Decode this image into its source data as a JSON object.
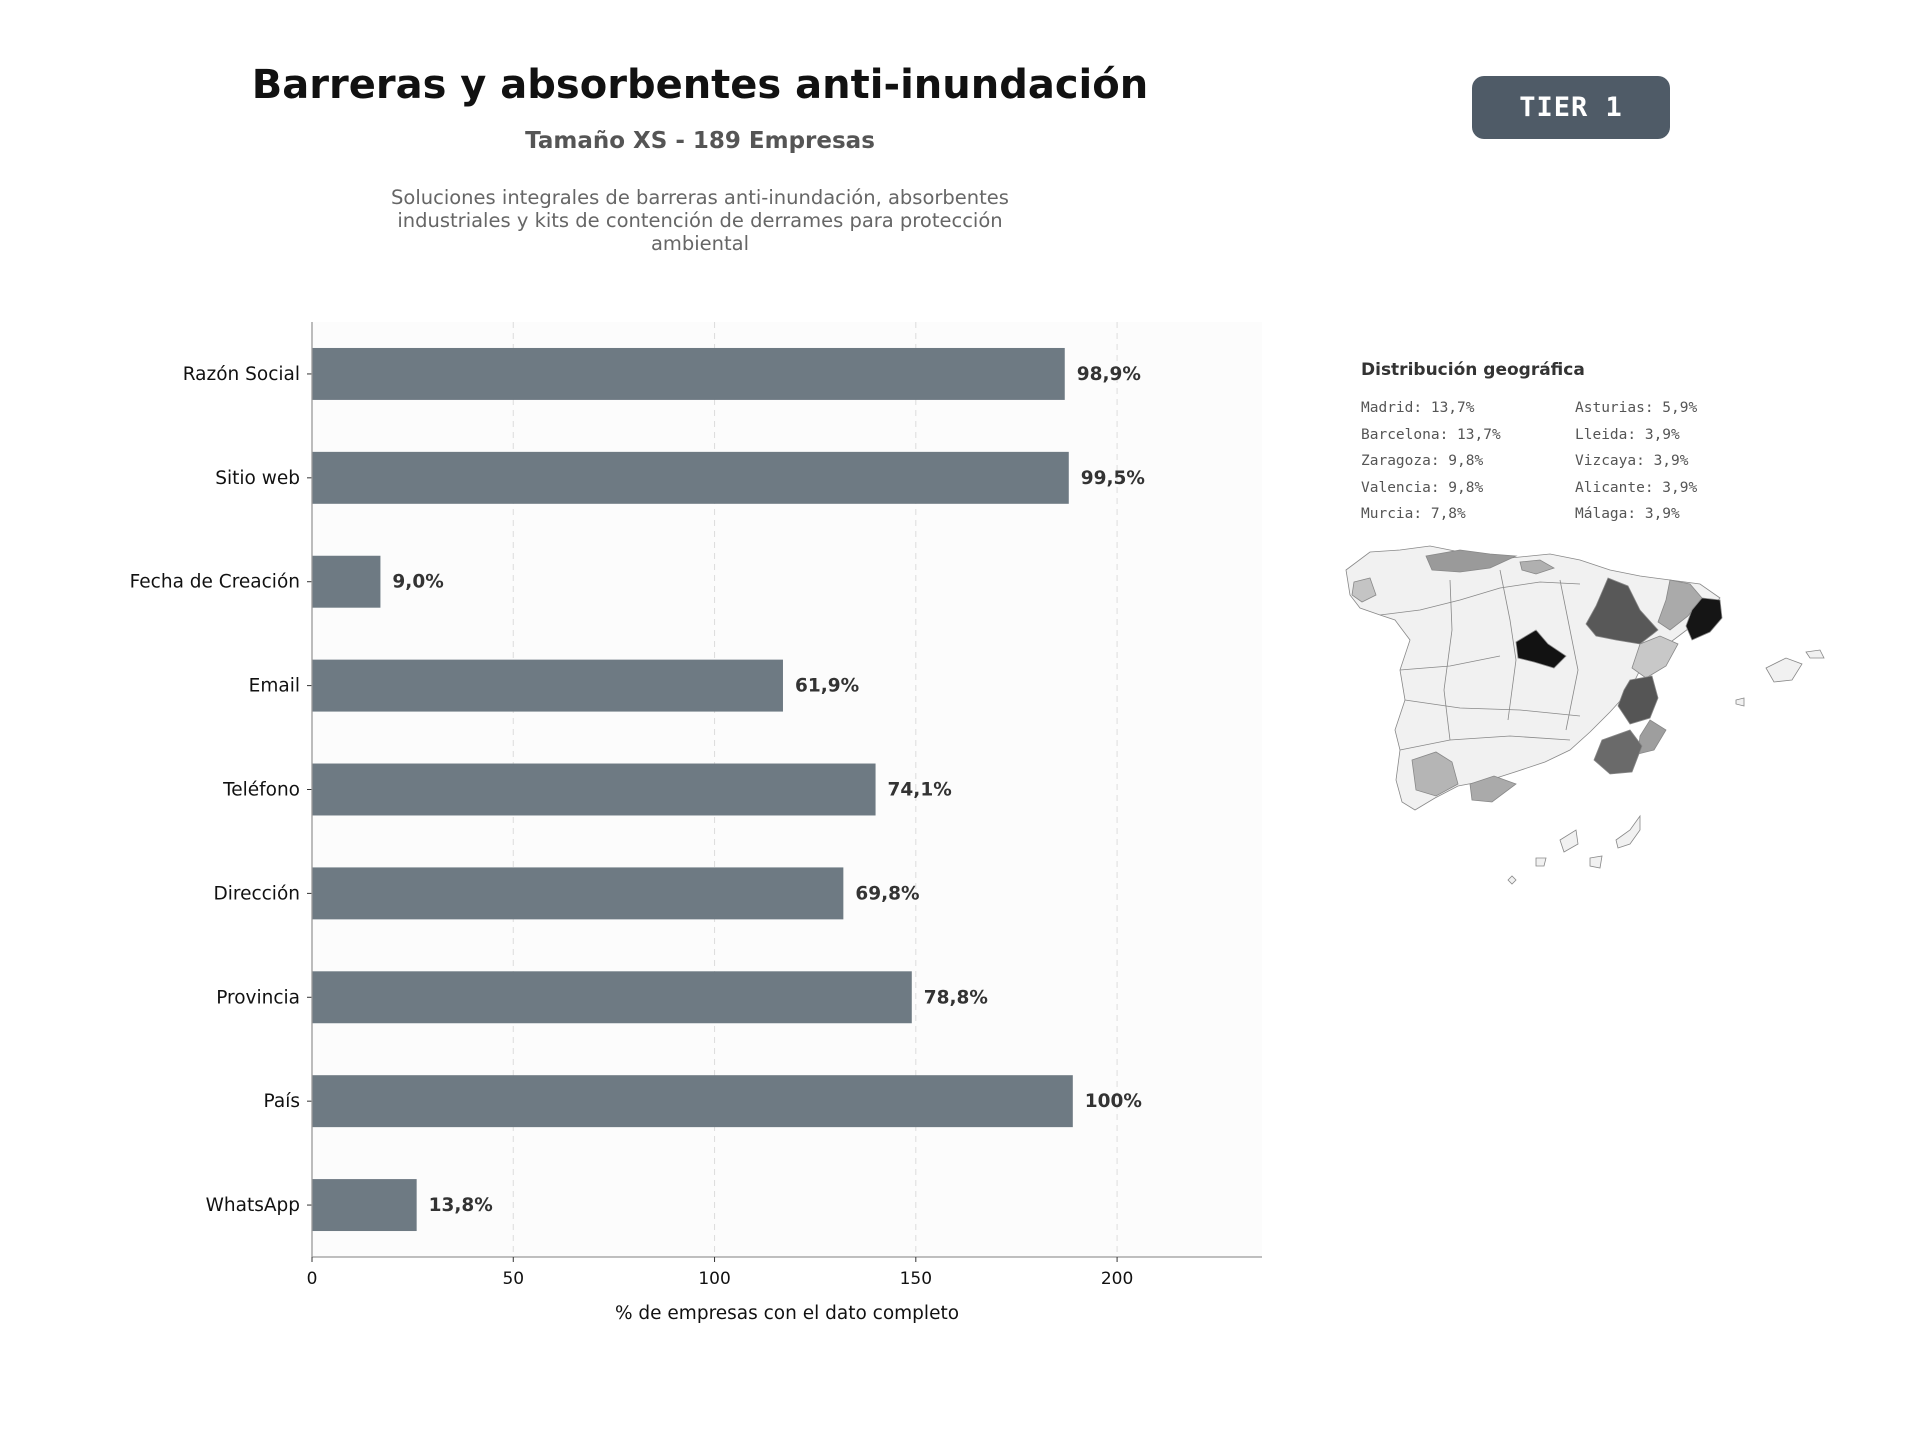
{
  "header": {
    "title": "Barreras y absorbentes anti-inundación",
    "subtitle": "Tamaño XS - 189 Empresas",
    "description": "Soluciones integrales de barreras anti-inundación, absorbentes industriales y kits de contención de derrames para protección ambiental"
  },
  "badge": {
    "label": "TIER 1"
  },
  "chart_data": {
    "type": "bar",
    "orientation": "horizontal",
    "categories": [
      "Razón Social",
      "Sitio web",
      "Fecha de Creación",
      "Email",
      "Teléfono",
      "Dirección",
      "Provincia",
      "País",
      "WhatsApp"
    ],
    "values": [
      187,
      188,
      17,
      117,
      140,
      132,
      149,
      189,
      26
    ],
    "value_labels": [
      "98,9%",
      "99,5%",
      "9,0%",
      "61,9%",
      "74,1%",
      "69,8%",
      "78,8%",
      "100%",
      "13,8%"
    ],
    "xlabel": "% de empresas con el dato completo",
    "ylabel": "",
    "xlim": [
      0,
      236
    ],
    "xticks": [
      0,
      50,
      100,
      150,
      200
    ],
    "grid": "x-dashed",
    "bar_color": "#6e7a83"
  },
  "geo": {
    "title": "Distribución geográfica",
    "items": [
      "Madrid: 13,7%",
      "Asturias: 5,9%",
      "Barcelona: 13,7%",
      "Lleida: 3,9%",
      "Zaragoza: 9,8%",
      "Vizcaya: 3,9%",
      "Valencia: 9,8%",
      "Alicante: 3,9%",
      "Murcia: 7,8%",
      "Málaga: 3,9%"
    ]
  }
}
